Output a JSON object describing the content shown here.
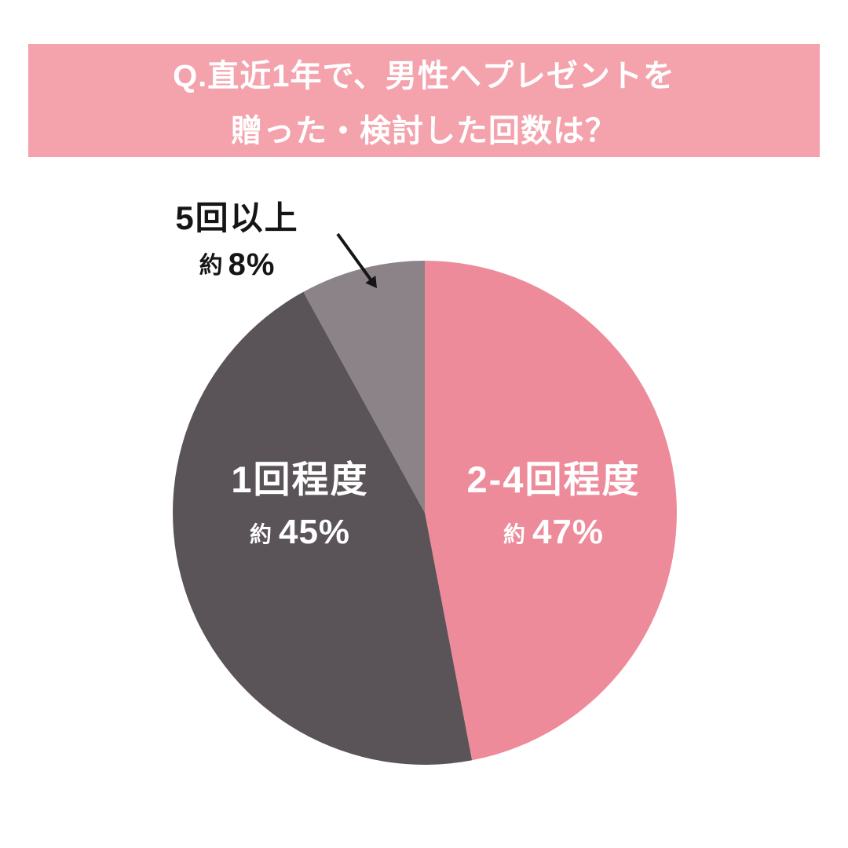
{
  "header": {
    "line1": "Q.直近1年で、男性へプレゼントを",
    "line2": "贈った・検討した回数は？",
    "bg_color": "#F4A2AC",
    "text_color": "#FFFFFF"
  },
  "chart_data": {
    "type": "pie",
    "title": "Q.直近1年で、男性へプレゼントを贈った・検討した回数は？",
    "start_angle_deg": 0,
    "direction": "clockwise",
    "total": 100,
    "background": "#FFFFFF",
    "legend_position": "none",
    "slices": [
      {
        "label": "2-4回程度",
        "value": 47,
        "value_prefix": "約",
        "value_text": "47%",
        "color": "#ED8B9B",
        "label_color": "#FFFFFF",
        "label_placement": "inside"
      },
      {
        "label": "1回程度",
        "value": 45,
        "value_prefix": "約",
        "value_text": "45%",
        "color": "#5A5358",
        "label_color": "#FFFFFF",
        "label_placement": "inside"
      },
      {
        "label": "5回以上",
        "value": 8,
        "value_prefix": "約",
        "value_text": "8%",
        "color": "#8C8389",
        "label_color": "#151515",
        "label_placement": "outside-top-left"
      }
    ]
  }
}
